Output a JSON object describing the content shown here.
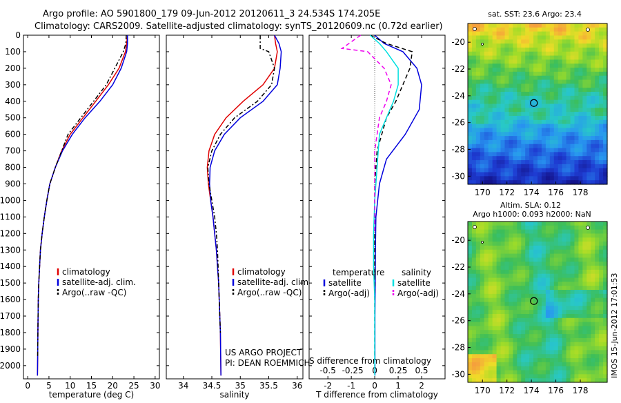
{
  "header": {
    "line1": "Argo profile: AO 5901800_179 09-Jun-2012 20120611_3 24.534S 174.205E",
    "line2": "Climatology: CARS2009. Satellite-adjusted climatology: synTS_20120609.nc (0.72d earlier)"
  },
  "side_label": "IMOS 15-Jun-2012 17:01:53",
  "colors": {
    "climatology": "#e00000",
    "satellite": "#0000dd",
    "argo": "#000000",
    "cyan": "#00e0e0",
    "magenta": "#ee00ee"
  },
  "chart_data": [
    {
      "id": "temperature",
      "type": "line",
      "xlabel": "temperature (deg C)",
      "xlim": [
        -1,
        31
      ],
      "xticks": [
        0,
        5,
        10,
        15,
        20,
        25,
        30
      ],
      "xtick_labels": [
        "0",
        "5",
        "10",
        "15",
        "20",
        "25",
        "30"
      ],
      "ylim": [
        2080,
        0
      ],
      "yticks": [
        0,
        100,
        200,
        300,
        400,
        500,
        600,
        700,
        800,
        900,
        1000,
        1100,
        1200,
        1300,
        1400,
        1500,
        1600,
        1700,
        1800,
        1900,
        2000
      ],
      "ytick_labels": [
        "0",
        "100",
        "200",
        "300",
        "400",
        "500",
        "600",
        "700",
        "800",
        "900",
        "1000",
        "1100",
        "1200",
        "1300",
        "1400",
        "1500",
        "1600",
        "1700",
        "1800",
        "1900",
        "2000"
      ],
      "legend": [
        "climatology",
        "satellite-adj. clim.",
        "Argo(..raw -QC)"
      ],
      "series": [
        {
          "name": "climatology",
          "color": "climatology",
          "dash": "none",
          "x": [
            23.5,
            23.3,
            23,
            21.5,
            19,
            16,
            13,
            10,
            8,
            6.5,
            5.2,
            4.5,
            3.9,
            3.4,
            3,
            2.8,
            2.6,
            2.5,
            2.4,
            2.35,
            2.3
          ],
          "y": [
            0,
            50,
            100,
            200,
            300,
            400,
            500,
            600,
            700,
            800,
            900,
            1000,
            1100,
            1200,
            1300,
            1400,
            1500,
            1600,
            1800,
            1950,
            2060
          ]
        },
        {
          "name": "satellite-adj. clim.",
          "color": "satellite",
          "dash": "none",
          "x": [
            23.5,
            23.5,
            23.3,
            22,
            20,
            17,
            13.5,
            10.5,
            8.2,
            6.5,
            5.2,
            4.5,
            3.9,
            3.4,
            3,
            2.8,
            2.6,
            2.5,
            2.4,
            2.35,
            2.3
          ],
          "y": [
            0,
            50,
            100,
            200,
            300,
            400,
            500,
            600,
            700,
            800,
            900,
            1000,
            1100,
            1200,
            1300,
            1400,
            1500,
            1600,
            1800,
            1950,
            2060
          ]
        },
        {
          "name": "Argo(..raw -QC)",
          "color": "argo",
          "dash": "6,3,2,3",
          "x": [
            23.2,
            23.1,
            22.5,
            20.5,
            18.5,
            15.5,
            12.5,
            9.5,
            8,
            6.5,
            5.2,
            4.5,
            3.9,
            3.4,
            3,
            2.8,
            2.6,
            2.5,
            2.4,
            2.35
          ],
          "y": [
            0,
            50,
            100,
            200,
            300,
            400,
            500,
            600,
            700,
            800,
            900,
            1000,
            1100,
            1200,
            1300,
            1400,
            1500,
            1600,
            1800,
            1950
          ]
        }
      ]
    },
    {
      "id": "salinity",
      "type": "line",
      "xlabel": "salinity",
      "xlim": [
        33.7,
        36.1
      ],
      "xticks": [
        34,
        34.5,
        35,
        35.5,
        36
      ],
      "xtick_labels": [
        "34",
        "34.5",
        "35",
        "35.5",
        "36"
      ],
      "ylim": [
        2080,
        0
      ],
      "legend": [
        "climatology",
        "satellite-adj. clim.",
        "Argo(..raw -QC)"
      ],
      "annotations": [
        "US ARGO PROJECT",
        "PI: DEAN ROEMMICH"
      ],
      "series": [
        {
          "name": "climatology",
          "color": "climatology",
          "dash": "none",
          "x": [
            35.6,
            35.62,
            35.65,
            35.6,
            35.4,
            35.05,
            34.75,
            34.55,
            34.45,
            34.42,
            34.44,
            34.48,
            34.52,
            34.55,
            34.58,
            34.6,
            34.62,
            34.63,
            34.65,
            34.66
          ],
          "y": [
            0,
            50,
            100,
            200,
            300,
            400,
            500,
            600,
            700,
            800,
            900,
            1000,
            1100,
            1200,
            1300,
            1400,
            1500,
            1600,
            1800,
            2060
          ]
        },
        {
          "name": "satellite-adj. clim.",
          "color": "satellite",
          "dash": "none",
          "x": [
            35.6,
            35.68,
            35.72,
            35.7,
            35.65,
            35.4,
            35.0,
            34.72,
            34.55,
            34.47,
            34.46,
            34.48,
            34.52,
            34.55,
            34.58,
            34.6,
            34.62,
            34.63,
            34.65,
            34.66
          ],
          "y": [
            0,
            50,
            100,
            200,
            300,
            400,
            500,
            600,
            700,
            800,
            900,
            1000,
            1100,
            1200,
            1300,
            1400,
            1500,
            1600,
            1800,
            2060
          ]
        },
        {
          "name": "Argo(..raw -QC)",
          "color": "argo",
          "dash": "6,3,2,3",
          "x": [
            35.35,
            35.35,
            35.5,
            35.6,
            35.55,
            35.3,
            34.9,
            34.65,
            34.5,
            34.43,
            34.45,
            34.5,
            34.55,
            34.58,
            34.6,
            34.61,
            34.62,
            34.63,
            34.65
          ],
          "y": [
            0,
            80,
            100,
            200,
            300,
            400,
            500,
            600,
            700,
            800,
            900,
            1000,
            1100,
            1200,
            1300,
            1400,
            1500,
            1600,
            1800
          ]
        }
      ]
    },
    {
      "id": "difference",
      "type": "line",
      "xlabel": "T difference from climatology",
      "xlabel_top": "S difference from climatology",
      "xlim": [
        -2.8,
        3.0
      ],
      "xticks": [
        -2,
        -1,
        0,
        1,
        2
      ],
      "xtick_labels": [
        "-2",
        "-1",
        "0",
        "1",
        "2"
      ],
      "top_ticks": [
        -2,
        -1,
        0,
        1,
        2
      ],
      "top_tick_labels": [
        "-0.5",
        "-0.25",
        "0",
        "0.25",
        "0.5"
      ],
      "ylim": [
        2080,
        0
      ],
      "legend_headers": [
        "temperature",
        "salinity"
      ],
      "legend": [
        "satellite",
        "Argo(-adj)",
        "satellite",
        "Argo(-adj)"
      ],
      "series": [
        {
          "name": "temperature satellite",
          "color": "satellite",
          "dash": "none",
          "x": [
            0,
            0.4,
            1.2,
            1.8,
            2.0,
            1.9,
            1.3,
            0.5,
            0.2,
            0.05,
            0.03,
            0.02,
            0.01,
            0.01,
            0.01,
            0.01
          ],
          "y": [
            0,
            50,
            100,
            200,
            300,
            450,
            600,
            750,
            900,
            1100,
            1300,
            1500,
            1700,
            1900,
            2000,
            2060
          ]
        },
        {
          "name": "temperature Argo(-adj)",
          "color": "argo",
          "dash": "6,4",
          "x": [
            -0.2,
            0.5,
            1.6,
            1.5,
            1.2,
            0.9,
            0.5,
            0.1,
            0,
            0,
            0,
            0,
            0,
            0,
            0
          ],
          "y": [
            0,
            50,
            100,
            200,
            300,
            400,
            500,
            700,
            900,
            1100,
            1300,
            1500,
            1700,
            1900,
            2000
          ]
        },
        {
          "name": "salinity satellite",
          "color": "cyan",
          "dash": "none",
          "x": [
            -0.2,
            0.2,
            0.5,
            1.0,
            1.0,
            0.8,
            0.5,
            0.2,
            0.1,
            0,
            -0.05,
            -0.05,
            0,
            0,
            0
          ],
          "y": [
            0,
            50,
            100,
            200,
            300,
            400,
            500,
            600,
            800,
            1000,
            1200,
            1400,
            1600,
            1800,
            2060
          ]
        },
        {
          "name": "salinity Argo(-adj)",
          "color": "magenta",
          "dash": "6,4",
          "x": [
            -0.6,
            -1.4,
            -0.3,
            0.4,
            0.7,
            0.5,
            0.2,
            0,
            0,
            0
          ],
          "y": [
            0,
            80,
            100,
            200,
            300,
            400,
            500,
            700,
            900,
            1200
          ]
        }
      ]
    },
    {
      "id": "sst-map",
      "type": "heatmap",
      "title": "sat. SST: 23.6 Argo: 23.4",
      "xticks": [
        170,
        172,
        174,
        176,
        178
      ],
      "xtick_labels": [
        "170",
        "172",
        "174",
        "176",
        "178"
      ],
      "yticks": [
        -20,
        -22,
        -24,
        -26,
        -28,
        -30
      ],
      "ytick_labels": [
        "-20",
        "-22",
        "-24",
        "-26",
        "-28",
        "-30"
      ],
      "xlim": [
        168.8,
        180.2
      ],
      "ylim": [
        -18.6,
        -30.6
      ],
      "marker": {
        "lon": 174.205,
        "lat": -24.534
      }
    },
    {
      "id": "sla-map",
      "type": "heatmap",
      "title_lines": [
        "Altim. SLA: 0.12",
        "Argo h1000: 0.093 h2000: NaN"
      ],
      "xticks": [
        170,
        172,
        174,
        176,
        178
      ],
      "xtick_labels": [
        "170",
        "172",
        "174",
        "176",
        "178"
      ],
      "yticks": [
        -20,
        -22,
        -24,
        -26,
        -28,
        -30
      ],
      "ytick_labels": [
        "-20",
        "-22",
        "-24",
        "-26",
        "-28",
        "-30"
      ],
      "xlim": [
        168.8,
        180.2
      ],
      "ylim": [
        -18.6,
        -30.6
      ],
      "marker": {
        "lon": 174.205,
        "lat": -24.534
      }
    }
  ]
}
